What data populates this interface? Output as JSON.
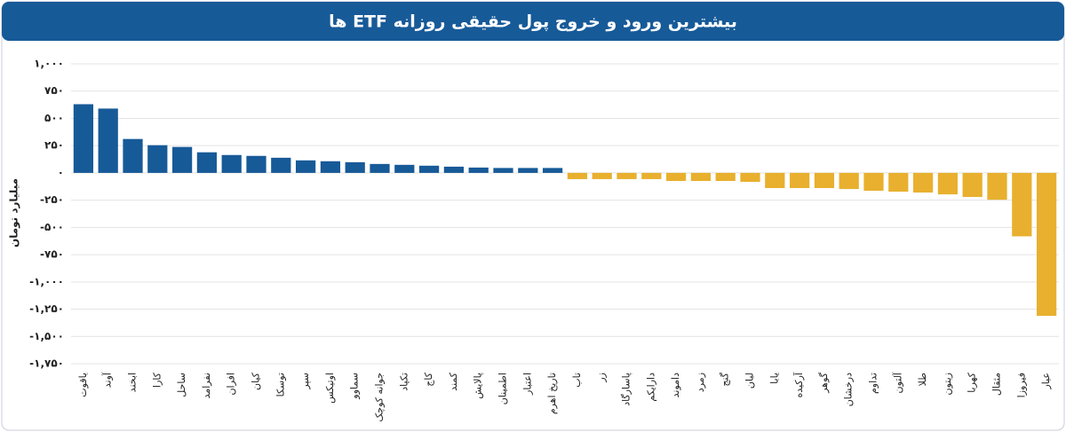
{
  "chart_data": {
    "type": "bar",
    "title": "بیشترین ورود و خروج پول حقیقی روزانه ETF ها",
    "y_label": "میلیارد تومان",
    "categories": [
      "یاقوت",
      "آوند",
      "ابخند",
      "کارا",
      "ساحل",
      "نفرامد",
      "افران",
      "کیان",
      "توسکا",
      "سپر",
      "اوتیکس",
      "سماوو",
      "جوانه کوچک",
      "تکپاد",
      "کاج",
      "کمند",
      "پالایش",
      "اطمینان",
      "اعتبار",
      "تاریخ اهرم",
      "تاب",
      "زر",
      "پاسارگاد",
      "دارایکم",
      "داموند",
      "زمرد",
      "گنج",
      "لبان",
      "یابا",
      "آرکیده",
      "گوهر",
      "درخشان",
      "تداوم",
      "آلتون",
      "طلا",
      "زیتون",
      "کهربا",
      "مثقال",
      "فیروزا",
      "عیار"
    ],
    "values": [
      630,
      590,
      311,
      254,
      238,
      189,
      164,
      156,
      139,
      115,
      107,
      98,
      82,
      74,
      66,
      57,
      49,
      45,
      45,
      45,
      -57,
      -57,
      -57,
      -57,
      -74,
      -74,
      -74,
      -82,
      -139,
      -139,
      -139,
      -148,
      -164,
      -172,
      -180,
      -197,
      -221,
      -246,
      -582,
      -1311
    ],
    "colors": {
      "positive": "#175a98",
      "negative": "#e8b02e"
    },
    "ylim": [
      -1750,
      1000
    ],
    "yticks": [
      {
        "value": 1000,
        "label": "۱,۰۰۰"
      },
      {
        "value": 750,
        "label": "۷۵۰"
      },
      {
        "value": 500,
        "label": "۵۰۰"
      },
      {
        "value": 250,
        "label": "۲۵۰"
      },
      {
        "value": 0,
        "label": "۰"
      },
      {
        "value": -250,
        "label": "-۲۵۰"
      },
      {
        "value": -500,
        "label": "-۵۰۰"
      },
      {
        "value": -750,
        "label": "-۷۵۰"
      },
      {
        "value": -1000,
        "label": "-۱,۰۰۰"
      },
      {
        "value": -1250,
        "label": "-۱,۲۵۰"
      },
      {
        "value": -1500,
        "label": "-۱,۵۰۰"
      },
      {
        "value": -1750,
        "label": "-۱,۷۵۰"
      }
    ],
    "grid": true
  }
}
